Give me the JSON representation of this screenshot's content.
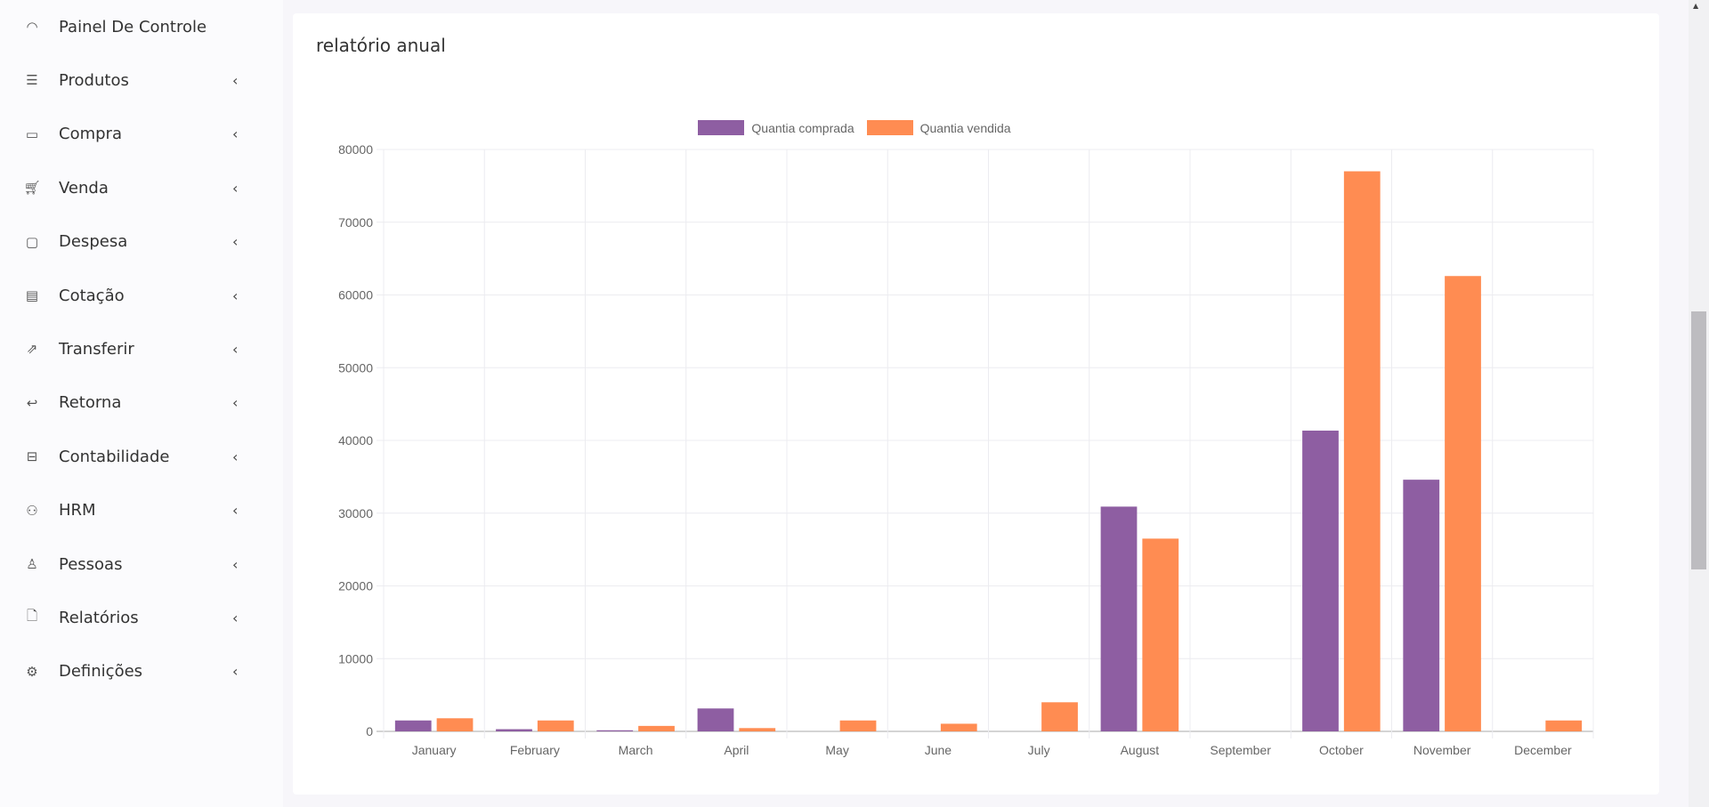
{
  "sidebar": {
    "items": [
      {
        "label": "Painel De Controle",
        "icon": "speedometer-icon",
        "glyph": "◠",
        "chevron": ""
      },
      {
        "label": "Produtos",
        "icon": "list-icon",
        "glyph": "☰",
        "chevron": "‹"
      },
      {
        "label": "Compra",
        "icon": "credit-card-icon",
        "glyph": "▭",
        "chevron": "‹"
      },
      {
        "label": "Venda",
        "icon": "cart-icon",
        "glyph": "🛒︎",
        "chevron": "‹"
      },
      {
        "label": "Despesa",
        "icon": "wallet-icon",
        "glyph": "▢",
        "chevron": "‹"
      },
      {
        "label": "Cotação",
        "icon": "document-icon",
        "glyph": "▤",
        "chevron": "‹"
      },
      {
        "label": "Transferir",
        "icon": "share-icon",
        "glyph": "⇗",
        "chevron": "‹"
      },
      {
        "label": "Retorna",
        "icon": "return-icon",
        "glyph": "↩",
        "chevron": "‹"
      },
      {
        "label": "Contabilidade",
        "icon": "briefcase-icon",
        "glyph": "⊟",
        "chevron": "‹"
      },
      {
        "label": "HRM",
        "icon": "users-icon",
        "glyph": "⚇",
        "chevron": "‹"
      },
      {
        "label": "Pessoas",
        "icon": "user-icon",
        "glyph": "♙",
        "chevron": "‹"
      },
      {
        "label": "Relatórios",
        "icon": "file-icon",
        "glyph": "🗋",
        "chevron": "‹"
      },
      {
        "label": "Definições",
        "icon": "gear-icon",
        "glyph": "⚙",
        "chevron": "‹"
      }
    ]
  },
  "card": {
    "title": "relatório anual"
  },
  "chart_data": {
    "type": "bar",
    "title": "",
    "xlabel": "",
    "ylabel": "",
    "ylim": [
      0,
      80000
    ],
    "yticks": [
      0,
      10000,
      20000,
      30000,
      40000,
      50000,
      60000,
      70000,
      80000
    ],
    "grid": true,
    "legend": "top-center",
    "categories": [
      "January",
      "February",
      "March",
      "April",
      "May",
      "June",
      "July",
      "August",
      "September",
      "October",
      "November",
      "December"
    ],
    "series": [
      {
        "name": "Quantia comprada",
        "color": "#8e5ea2",
        "values": [
          1500,
          300,
          150,
          3150,
          0,
          0,
          0,
          30900,
          0,
          41350,
          34600,
          0
        ]
      },
      {
        "name": "Quantia vendida",
        "color": "#ff8c52",
        "values": [
          1800,
          1500,
          750,
          450,
          1500,
          1050,
          4000,
          26500,
          0,
          77000,
          62600,
          1500
        ]
      }
    ]
  }
}
